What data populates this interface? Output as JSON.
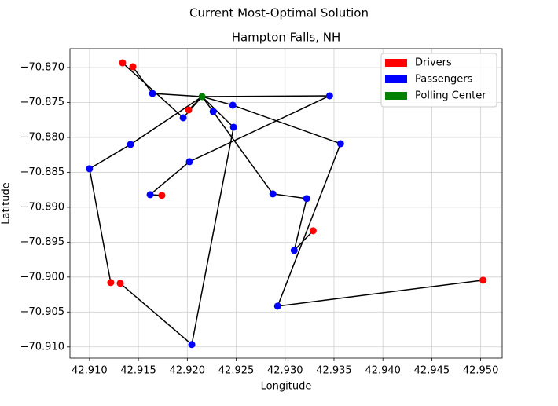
{
  "chart_data": {
    "type": "scatter",
    "title": "Current Most-Optimal Solution",
    "subtitle": "Hampton Falls, NH",
    "x_label": "Longitude",
    "y_label": "Latitude",
    "xlim": [
      42.908,
      42.9522
    ],
    "ylim": [
      -70.9116,
      -70.8673
    ],
    "xticks": [
      {
        "value": 42.91,
        "label": "42.910"
      },
      {
        "value": 42.915,
        "label": "42.915"
      },
      {
        "value": 42.92,
        "label": "42.920"
      },
      {
        "value": 42.925,
        "label": "42.925"
      },
      {
        "value": 42.93,
        "label": "42.930"
      },
      {
        "value": 42.935,
        "label": "42.935"
      },
      {
        "value": 42.94,
        "label": "42.940"
      },
      {
        "value": 42.945,
        "label": "42.945"
      },
      {
        "value": 42.95,
        "label": "42.950"
      }
    ],
    "yticks": [
      {
        "value": -70.87,
        "label": "−70.870"
      },
      {
        "value": -70.875,
        "label": "−70.875"
      },
      {
        "value": -70.88,
        "label": "−70.880"
      },
      {
        "value": -70.885,
        "label": "−70.885"
      },
      {
        "value": -70.89,
        "label": "−70.890"
      },
      {
        "value": -70.895,
        "label": "−70.895"
      },
      {
        "value": -70.9,
        "label": "−70.900"
      },
      {
        "value": -70.905,
        "label": "−70.905"
      },
      {
        "value": -70.91,
        "label": "−70.910"
      }
    ],
    "grid": true,
    "legend_position": "upper right",
    "route_color": "#000000",
    "series": [
      {
        "name": "Drivers",
        "color": "#ff0000",
        "x": [
          42.91338,
          42.91443,
          42.92014,
          42.9174,
          42.93286,
          42.91217,
          42.91314,
          42.95024
        ],
        "values": [
          -70.86933,
          -70.86989,
          -70.87607,
          -70.88831,
          -70.89337,
          -70.90079,
          -70.9009,
          -70.90045
        ]
      },
      {
        "name": "Passengers",
        "color": "#0000ff",
        "x": [
          42.91644,
          42.91958,
          42.92264,
          42.92465,
          42.92473,
          42.93455,
          42.93567,
          42.91419,
          42.91,
          42.92022,
          42.9162,
          42.92875,
          42.93221,
          42.93093,
          42.92924,
          42.92046
        ],
        "values": [
          -70.87371,
          -70.87719,
          -70.87629,
          -70.87539,
          -70.87854,
          -70.87404,
          -70.8809,
          -70.88101,
          -70.88449,
          -70.88348,
          -70.8882,
          -70.88809,
          -70.88876,
          -70.89618,
          -70.90416,
          -70.90966
        ]
      },
      {
        "name": "Polling Center",
        "color": "#008000",
        "x": [
          42.92151
        ],
        "values": [
          -70.87416
        ]
      }
    ],
    "routes": [
      {
        "x": [
          42.91443,
          42.91644,
          42.92151
        ],
        "values": [
          -70.86989,
          -70.87371,
          -70.87416
        ]
      },
      {
        "x": [
          42.91338,
          42.91958,
          42.92151
        ],
        "values": [
          -70.86933,
          -70.87719,
          -70.87416
        ]
      },
      {
        "x": [
          42.92014,
          42.92151
        ],
        "values": [
          -70.87607,
          -70.87416
        ]
      },
      {
        "x": [
          42.9174,
          42.9162,
          42.92022,
          42.93455,
          42.92151
        ],
        "values": [
          -70.88831,
          -70.8882,
          -70.88348,
          -70.87404,
          -70.87416
        ]
      },
      {
        "x": [
          42.93286,
          42.93093,
          42.93221,
          42.92875,
          42.92264,
          42.92151
        ],
        "values": [
          -70.89337,
          -70.89618,
          -70.88876,
          -70.88809,
          -70.87629,
          -70.87416
        ]
      },
      {
        "x": [
          42.91217,
          42.91,
          42.91419,
          42.92151
        ],
        "values": [
          -70.90079,
          -70.88449,
          -70.88101,
          -70.87416
        ]
      },
      {
        "x": [
          42.91314,
          42.92046,
          42.92473,
          42.92151
        ],
        "values": [
          -70.9009,
          -70.90966,
          -70.87854,
          -70.87416
        ]
      },
      {
        "x": [
          42.95024,
          42.92924,
          42.93567,
          42.92465,
          42.92151
        ],
        "values": [
          -70.90045,
          -70.90416,
          -70.8809,
          -70.87539,
          -70.87416
        ]
      }
    ]
  }
}
